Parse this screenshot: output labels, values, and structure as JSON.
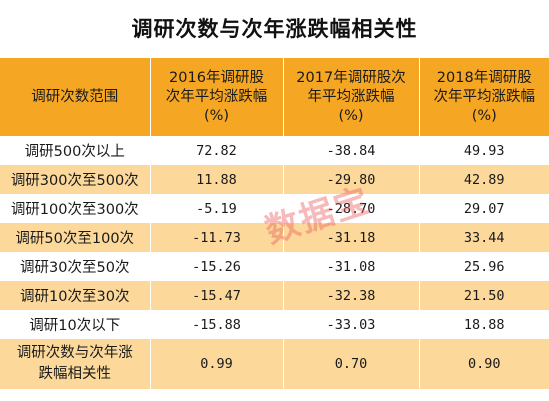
{
  "title": "调研次数与次年涨跌幅相关性",
  "table": {
    "headers": [
      {
        "lines": [
          "调研次数范围"
        ]
      },
      {
        "lines": [
          "2016年调研股",
          "次年平均涨跌幅",
          "(%)"
        ]
      },
      {
        "lines": [
          "2017年调研股次",
          "年平均涨跌幅",
          "(%)"
        ]
      },
      {
        "lines": [
          "2018年调研股",
          "次年平均涨跌幅",
          "(%)"
        ]
      }
    ],
    "rows": [
      {
        "range": "调研500次以上",
        "v2016": "72.82",
        "v2017": "-38.84",
        "v2018": "49.93"
      },
      {
        "range": "调研300次至500次",
        "v2016": "11.88",
        "v2017": "-29.80",
        "v2018": "42.89"
      },
      {
        "range": "调研100次至300次",
        "v2016": "-5.19",
        "v2017": "-28.70",
        "v2018": "29.07"
      },
      {
        "range": "调研50次至100次",
        "v2016": "-11.73",
        "v2017": "-31.18",
        "v2018": "33.44"
      },
      {
        "range": "调研30次至50次",
        "v2016": "-15.26",
        "v2017": "-31.08",
        "v2018": "25.96"
      },
      {
        "range": "调研10次至30次",
        "v2016": "-15.47",
        "v2017": "-32.38",
        "v2018": "21.50"
      },
      {
        "range": "调研10次以下",
        "v2016": "-15.88",
        "v2017": "-33.03",
        "v2018": "18.88"
      }
    ],
    "correlation": {
      "label_lines": [
        "调研次数与次年涨",
        "跌幅相关性"
      ],
      "v2016": "0.99",
      "v2017": "0.70",
      "v2018": "0.90"
    }
  },
  "watermark": "数据宝",
  "colors": {
    "header_bg": "#f5a623",
    "stripe_bg": "#fcd99b",
    "row_bg": "#ffffff",
    "watermark": "#eb5a5a"
  }
}
